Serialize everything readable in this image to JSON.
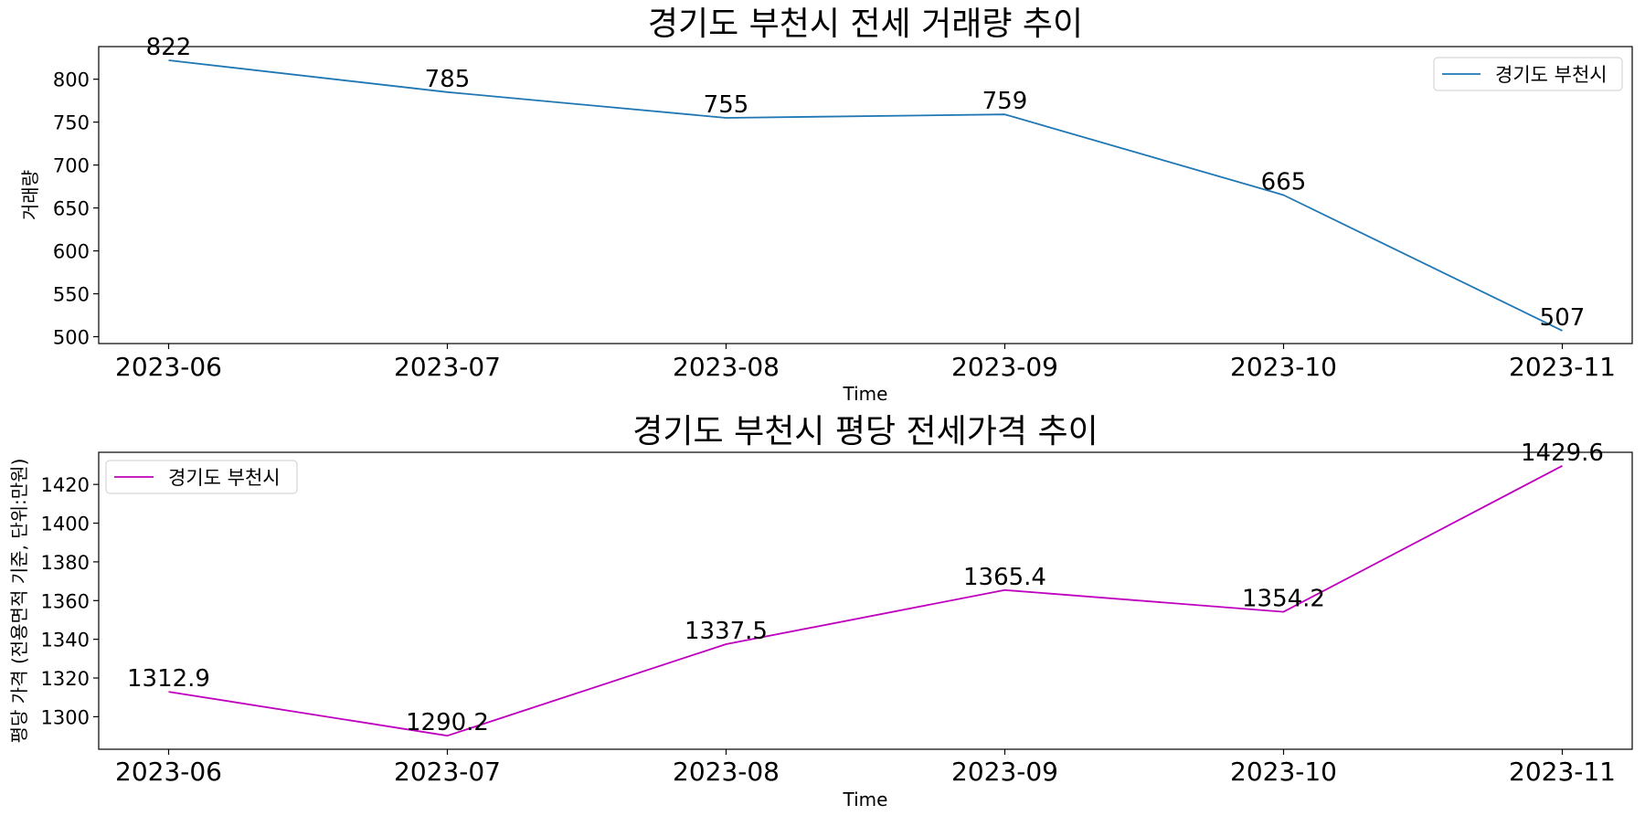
{
  "chart_data": [
    {
      "type": "line",
      "title": "경기도 부천시 전세 거래량 추이",
      "xlabel": "Time",
      "ylabel": "거래량",
      "categories": [
        "2023-06",
        "2023-07",
        "2023-08",
        "2023-09",
        "2023-10",
        "2023-11"
      ],
      "series": [
        {
          "name": "경기도 부천시",
          "color": "#1f77b4",
          "values": [
            822,
            785,
            755,
            759,
            665,
            507
          ],
          "labels": [
            "822",
            "785",
            "755",
            "759",
            "665",
            "507"
          ]
        }
      ],
      "ylim": [
        492,
        838
      ],
      "yticks": [
        500,
        550,
        600,
        650,
        700,
        750,
        800
      ],
      "ytick_labels": [
        "500",
        "550",
        "600",
        "650",
        "700",
        "750",
        "800"
      ],
      "legend": "top-right",
      "grid": false
    },
    {
      "type": "line",
      "title": "경기도 부천시 평당 전세가격 추이",
      "xlabel": "Time",
      "ylabel": "평당 가격 (전용면적 기준, 단위:만원)",
      "categories": [
        "2023-06",
        "2023-07",
        "2023-08",
        "2023-09",
        "2023-10",
        "2023-11"
      ],
      "series": [
        {
          "name": "경기도 부천시",
          "color": "#bf00bf",
          "values": [
            1312.9,
            1290.2,
            1337.5,
            1365.4,
            1354.2,
            1429.6
          ],
          "labels": [
            "1312.9",
            "1290.2",
            "1337.5",
            "1365.4",
            "1354.2",
            "1429.6"
          ]
        }
      ],
      "ylim": [
        1283.2,
        1436.6
      ],
      "yticks": [
        1300,
        1320,
        1340,
        1360,
        1380,
        1400,
        1420
      ],
      "ytick_labels": [
        "1300",
        "1320",
        "1340",
        "1360",
        "1380",
        "1400",
        "1420"
      ],
      "legend": "top-left",
      "grid": false
    }
  ]
}
